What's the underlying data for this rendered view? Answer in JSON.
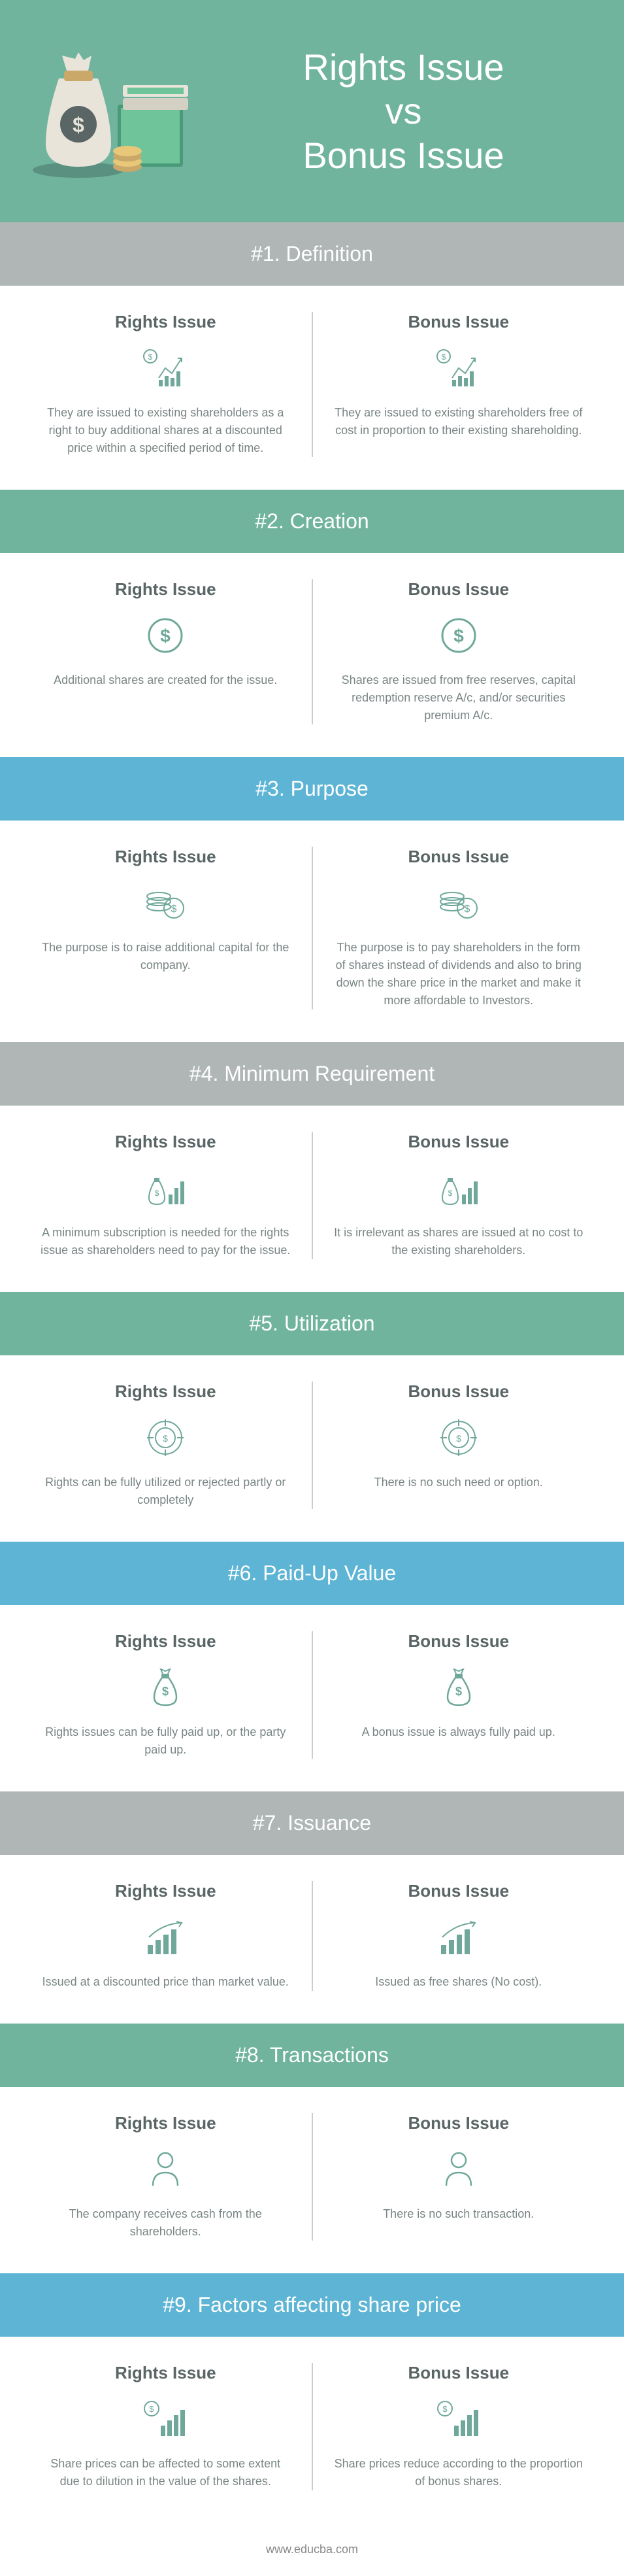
{
  "header": {
    "title_l1": "Rights Issue",
    "title_l2": "vs",
    "title_l3": "Bonus Issue"
  },
  "colors": {
    "teal": "#70b49d",
    "blue": "#5db4d4",
    "gray": "#b0b6b6",
    "icon": "#6fa89a",
    "text": "#7a8585"
  },
  "col_labels": {
    "left": "Rights Issue",
    "right": "Bonus Issue"
  },
  "sections": [
    {
      "num": "#1.",
      "title": "Definition",
      "band": "gray",
      "icon": "chart",
      "left": "They are issued to existing shareholders as a right to buy additional shares at a discounted price within a specified period of time.",
      "right": "They are issued to existing shareholders free of cost in proportion to their existing shareholding."
    },
    {
      "num": "#2.",
      "title": "Creation",
      "band": "teal",
      "icon": "dollar-circle",
      "left": "Additional shares are created for the issue.",
      "right": "Shares are issued from free reserves, capital redemption reserve A/c, and/or securities premium A/c."
    },
    {
      "num": "#3.",
      "title": "Purpose",
      "band": "blue",
      "icon": "coins",
      "left": "The purpose is to raise additional capital for the company.",
      "right": "The purpose is to pay shareholders in the form of shares instead of dividends and also to bring down the share price in the market and make it more affordable to Investors."
    },
    {
      "num": "#4.",
      "title": "Minimum Requirement",
      "band": "gray",
      "icon": "bag-chart",
      "left": "A minimum subscription is needed for the rights issue as shareholders need to pay for the issue.",
      "right": "It is irrelevant as shares are issued at no cost to the existing shareholders."
    },
    {
      "num": "#5.",
      "title": "Utilization",
      "band": "teal",
      "icon": "target",
      "left": "Rights can be fully utilized or rejected partly or completely",
      "right": "There is no such need or option."
    },
    {
      "num": "#6.",
      "title": "Paid-Up Value",
      "band": "blue",
      "icon": "bag",
      "left": "Rights issues can be fully paid up, or the party paid up.",
      "right": "A bonus issue is always fully paid up."
    },
    {
      "num": "#7.",
      "title": "Issuance",
      "band": "gray",
      "icon": "growth",
      "left": "Issued at a discounted price than market value.",
      "right": "Issued as free shares (No cost)."
    },
    {
      "num": "#8.",
      "title": "Transactions",
      "band": "teal",
      "icon": "person",
      "left": "The company receives cash from the shareholders.",
      "right": "There is no such transaction."
    },
    {
      "num": "#9.",
      "title": "Factors affecting share price",
      "band": "blue",
      "icon": "bar-dollar",
      "left": "Share prices can be affected to some extent due to dilution in the value of the shares.",
      "right": "Share prices reduce according to the proportion of bonus shares."
    }
  ],
  "footer": "www.educba.com"
}
